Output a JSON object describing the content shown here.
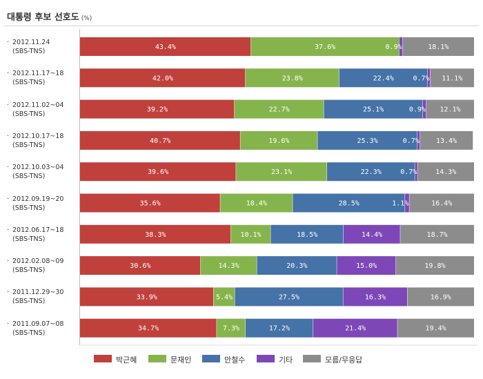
{
  "header": {
    "title": "대통령 후보 선호도",
    "unit": "(%)"
  },
  "chart_data": {
    "type": "bar",
    "orientation": "horizontal",
    "stacked": true,
    "xlim": [
      0,
      100
    ],
    "categories": [
      {
        "date": "2012.11.24",
        "source": "(SBS-TNS)"
      },
      {
        "date": "2012.11.17~18",
        "source": "(SBS-TNS)"
      },
      {
        "date": "2012.11.02~04",
        "source": "(SBS-TNS)"
      },
      {
        "date": "2012.10.17~18",
        "source": "(SBS-TNS)"
      },
      {
        "date": "2012.10.03~04",
        "source": "(SBS-TNS)"
      },
      {
        "date": "2012.09.19~20",
        "source": "(SBS-TNS)"
      },
      {
        "date": "2012.06.17~18",
        "source": "(SBS-TNS)"
      },
      {
        "date": "2012.02.08~09",
        "source": "(SBS-TNS)"
      },
      {
        "date": "2011.12.29~30",
        "source": "(SBS-TNS)"
      },
      {
        "date": "2011.09.07~08",
        "source": "(SBS-TNS)"
      }
    ],
    "series": [
      {
        "name": "박근혜",
        "color": "#c0403c",
        "values": [
          43.4,
          42.0,
          39.2,
          40.7,
          39.6,
          35.6,
          38.3,
          30.6,
          33.9,
          34.7
        ],
        "labels": [
          "43.4%",
          "42.0%",
          "39.2%",
          "40.7%",
          "39.6%",
          "35.6%",
          "38.3%",
          "30.6%",
          "33.9%",
          "34.7%"
        ]
      },
      {
        "name": "문재인",
        "color": "#86b44c",
        "values": [
          37.6,
          23.8,
          22.7,
          19.6,
          23.1,
          18.4,
          10.1,
          14.3,
          5.4,
          7.3
        ],
        "labels": [
          "37.6%",
          "23.8%",
          "22.7%",
          "19.6%",
          "23.1%",
          "18.4%",
          "10.1%",
          "14.3%",
          "5.4%",
          "7.3%"
        ]
      },
      {
        "name": "안철수",
        "color": "#4572a7",
        "values": [
          0,
          22.4,
          25.1,
          25.3,
          22.3,
          28.5,
          18.5,
          20.3,
          27.5,
          17.2
        ],
        "labels": [
          "",
          "22.4%",
          "25.1%",
          "25.3%",
          "22.3%",
          "28.5%",
          "18.5%",
          "20.3%",
          "27.5%",
          "17.2%"
        ]
      },
      {
        "name": "기타",
        "color": "#7d47b8",
        "values": [
          0.9,
          0.7,
          0.9,
          0.7,
          0.7,
          1.1,
          14.4,
          15.0,
          16.3,
          21.4
        ],
        "labels": [
          "0.9%",
          "0.7%",
          "0.9%",
          "0.7%",
          "0.7%",
          "1.1%",
          "14.4%",
          "15.0%",
          "16.3%",
          "21.4%"
        ]
      },
      {
        "name": "모름/무응답",
        "color": "#8c8c8c",
        "values": [
          18.1,
          11.1,
          12.1,
          13.4,
          14.3,
          16.4,
          18.7,
          19.8,
          16.9,
          19.4
        ],
        "labels": [
          "18.1%",
          "11.1%",
          "12.1%",
          "13.4%",
          "14.3%",
          "16.4%",
          "18.7%",
          "19.8%",
          "16.9%",
          "19.4%"
        ]
      }
    ],
    "legend_position": "bottom",
    "grid": false
  }
}
